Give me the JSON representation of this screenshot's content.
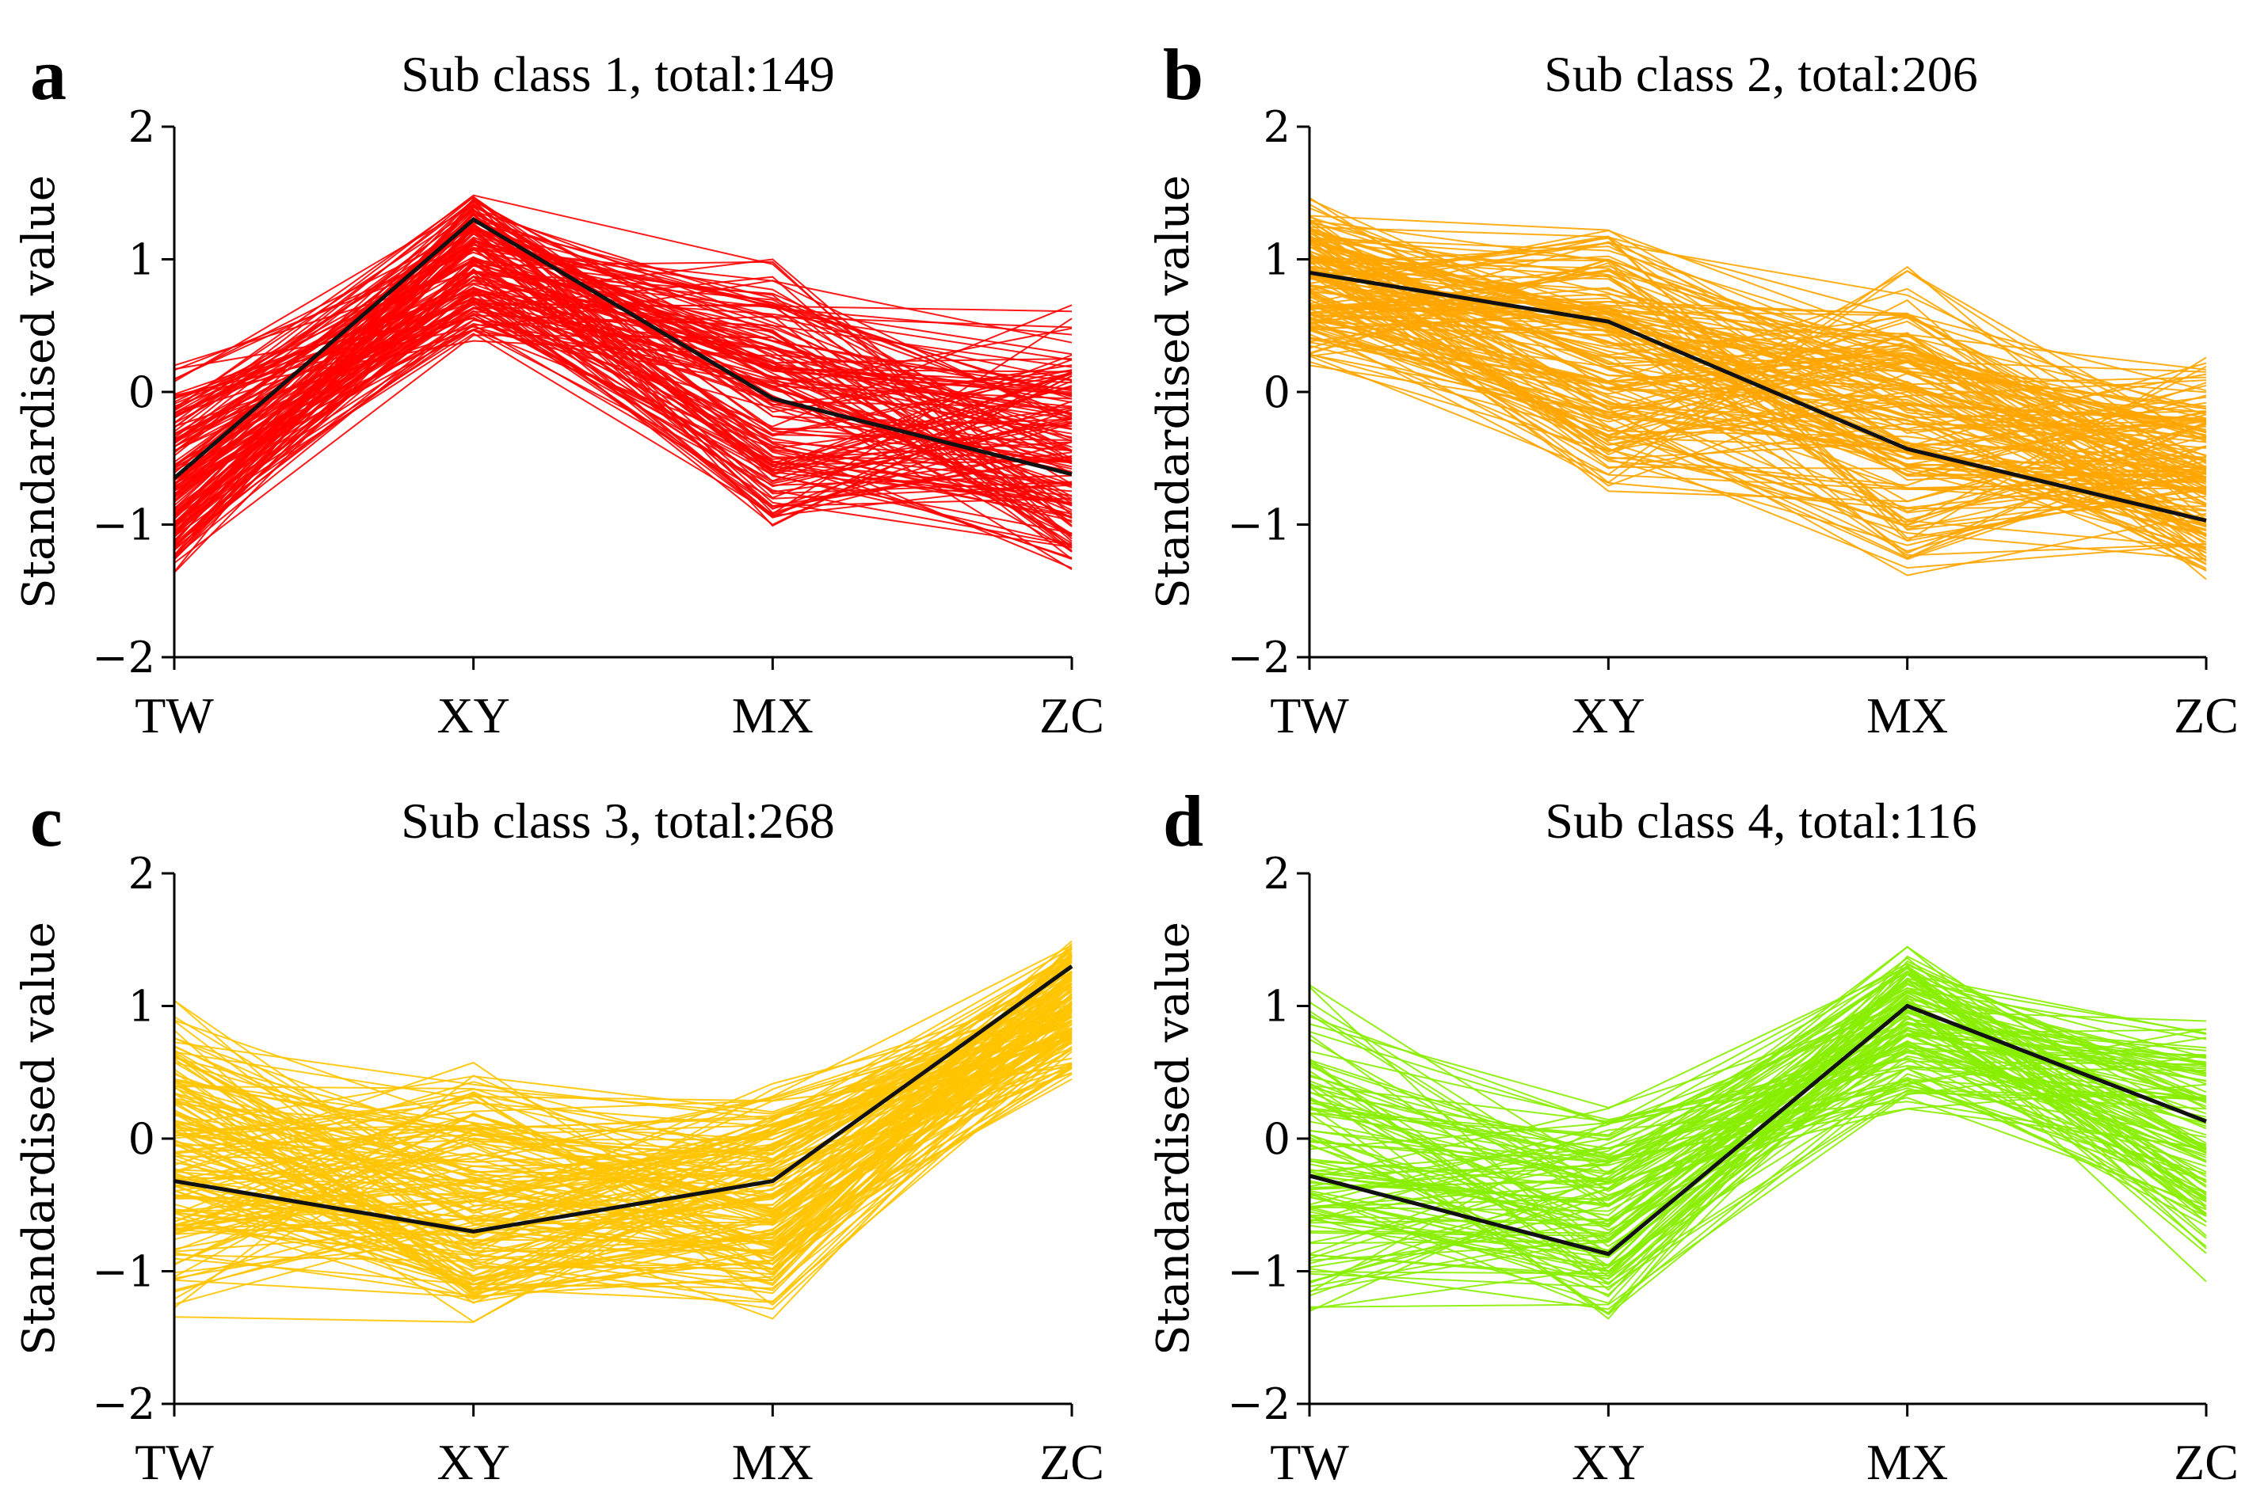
{
  "chart_data": [
    {
      "type": "line",
      "letter": "a",
      "title": "Sub class 1, total:149",
      "ylabel": "Standardised value",
      "categories": [
        "TW",
        "XY",
        "MX",
        "ZC"
      ],
      "yticks": [
        "2",
        "1",
        "0",
        "−1",
        "−2"
      ],
      "ylim": [
        -2,
        2
      ],
      "series_color": "#ff0000",
      "member_count": 149,
      "member_range": {
        "TW": [
          -1.5,
          0.2
        ],
        "XY": [
          0.3,
          1.5
        ],
        "MX": [
          -1.2,
          1.15
        ],
        "ZC": [
          -1.4,
          0.7
        ]
      },
      "centroid": [
        -0.65,
        1.3,
        -0.05,
        -0.62
      ]
    },
    {
      "type": "line",
      "letter": "b",
      "title": "Sub class 2, total:206",
      "ylabel": "Standardised value",
      "categories": [
        "TW",
        "XY",
        "MX",
        "ZC"
      ],
      "yticks": [
        "2",
        "1",
        "0",
        "−1",
        "−2"
      ],
      "ylim": [
        -2,
        2
      ],
      "series_color": "#ffa500",
      "member_count": 206,
      "member_range": {
        "TW": [
          0.15,
          1.5
        ],
        "XY": [
          -0.9,
          1.3
        ],
        "MX": [
          -1.5,
          1.0
        ],
        "ZC": [
          -1.5,
          0.4
        ]
      },
      "centroid": [
        0.9,
        0.53,
        -0.43,
        -0.97
      ]
    },
    {
      "type": "line",
      "letter": "c",
      "title": "Sub class 3, total:268",
      "ylabel": "Standardised value",
      "categories": [
        "TW",
        "XY",
        "MX",
        "ZC"
      ],
      "yticks": [
        "2",
        "1",
        "0",
        "−1",
        "−2"
      ],
      "ylim": [
        -2,
        2
      ],
      "series_color": "#ffc400",
      "member_count": 268,
      "member_range": {
        "TW": [
          -1.45,
          1.1
        ],
        "XY": [
          -1.45,
          0.7
        ],
        "MX": [
          -1.45,
          0.55
        ],
        "ZC": [
          0.35,
          1.5
        ]
      },
      "centroid": [
        -0.32,
        -0.7,
        -0.32,
        1.3
      ]
    },
    {
      "type": "line",
      "letter": "d",
      "title": "Sub class 4, total:116",
      "ylabel": "Standardised value",
      "categories": [
        "TW",
        "XY",
        "MX",
        "ZC"
      ],
      "yticks": [
        "2",
        "1",
        "0",
        "−1",
        "−2"
      ],
      "ylim": [
        -2,
        2
      ],
      "series_color": "#88ee00",
      "member_count": 116,
      "member_range": {
        "TW": [
          -1.45,
          1.25
        ],
        "XY": [
          -1.5,
          0.35
        ],
        "MX": [
          0.1,
          1.5
        ],
        "ZC": [
          -1.2,
          1.0
        ]
      },
      "centroid": [
        -0.28,
        -0.87,
        1.0,
        0.13
      ]
    }
  ]
}
